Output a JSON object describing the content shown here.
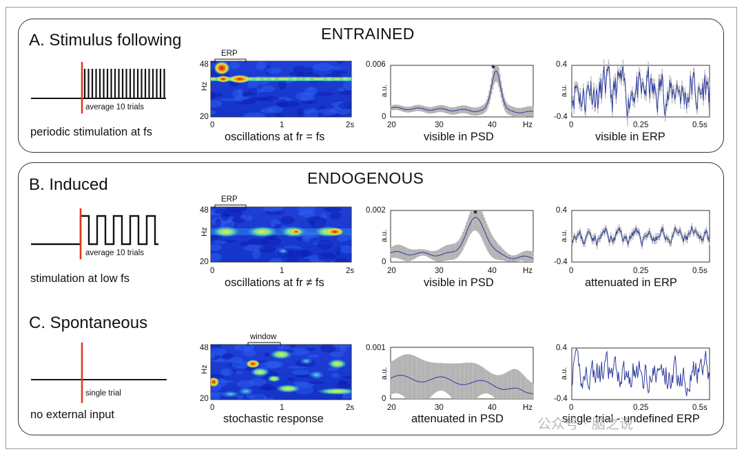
{
  "panelA": {
    "title": "A. Stimulus following",
    "header": "ENTRAINED",
    "stim_caption": "periodic stimulation at fs",
    "stim_note": "average 10 trials",
    "spec": {
      "bracket": "ERP",
      "y_top": "48",
      "y_bottom": "20",
      "y_unit": "Hz",
      "x_ticks": [
        "0",
        "1",
        "2s"
      ],
      "caption": "oscillations at fr = fs"
    },
    "psd": {
      "y_top": "0.006",
      "y_bottom": "0",
      "x_ticks": [
        "20",
        "30",
        "40",
        "Hz"
      ],
      "star": "*",
      "caption": "visible in PSD"
    },
    "erp": {
      "y_top": "0.4",
      "y_bottom": "-0.4",
      "y_unit": "a.u.",
      "x_ticks": [
        "0",
        "0.25",
        "0.5s"
      ],
      "caption": "visible in ERP"
    }
  },
  "panelB": {
    "title": "B. Induced",
    "header": "ENDOGENOUS",
    "stim_caption": "stimulation at low fs",
    "stim_note": "average 10 trials",
    "spec": {
      "bracket": "ERP",
      "y_top": "48",
      "y_bottom": "20",
      "y_unit": "Hz",
      "x_ticks": [
        "0",
        "1",
        "2s"
      ],
      "caption": "oscillations at fr ≠ fs"
    },
    "psd": {
      "y_top": "0.002",
      "y_bottom": "0",
      "y_unit": "a.u.",
      "x_ticks": [
        "20",
        "30",
        "40",
        "Hz"
      ],
      "star": "*",
      "caption": "visible in PSD"
    },
    "erp": {
      "y_top": "0.4",
      "y_bottom": "-0.4",
      "y_unit": "a.u.",
      "x_ticks": [
        "0",
        "0.25",
        "0.5s"
      ],
      "caption": "attenuated in ERP"
    }
  },
  "panelC": {
    "title": "C. Spontaneous",
    "stim_caption": "no external input",
    "stim_note": "single trial",
    "spec": {
      "bracket": "window",
      "y_top": "48",
      "y_bottom": "20",
      "y_unit": "Hz",
      "x_ticks": [
        "0",
        "1",
        "2s"
      ],
      "caption": "stochastic response"
    },
    "psd": {
      "y_top": "0.001",
      "y_bottom": "0",
      "y_unit": "a.u.",
      "x_ticks": [
        "20",
        "30",
        "40",
        "Hz"
      ],
      "caption": "attenuated in PSD"
    },
    "erp": {
      "y_top": "0.4",
      "y_bottom": "-0.4",
      "y_unit": "a.u.",
      "x_ticks": [
        "0",
        "0.25",
        "0.5s"
      ],
      "caption": "single trial - undefined ERP"
    }
  },
  "watermark": "公众号 · 脑之说",
  "colors": {
    "stim_onset": "#e03a1e",
    "trace": "#2b3a9c",
    "band": "#b0b0b0"
  }
}
